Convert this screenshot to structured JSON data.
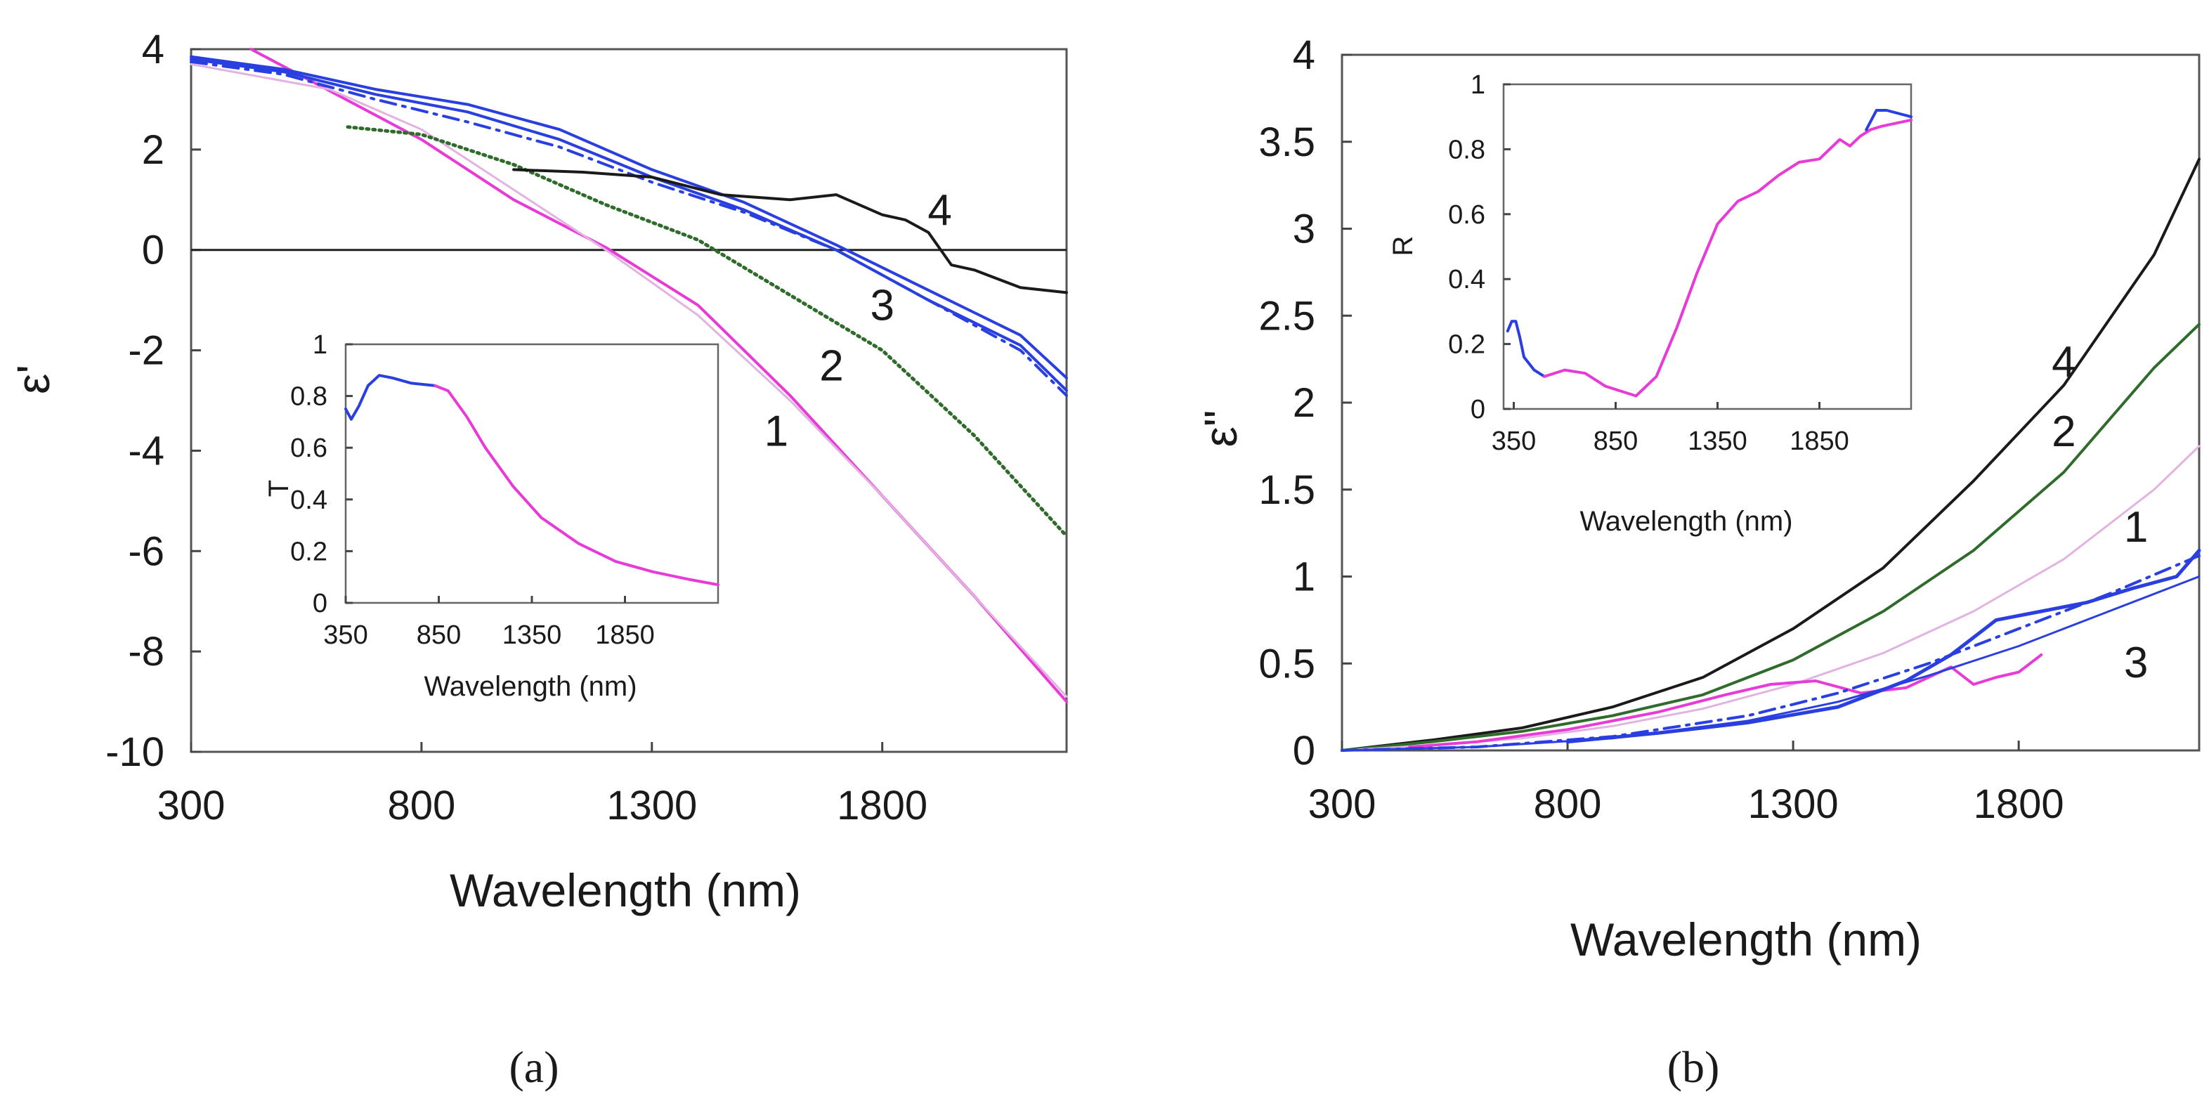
{
  "panel_labels": {
    "a": "(a)",
    "b": "(b)"
  },
  "colors": {
    "pink": "#e83ad6",
    "light_pink": "#e2b3e0",
    "green": "#2f6b2b",
    "blue": "#2a3fe0",
    "black": "#1a1a1a"
  },
  "chart_data": [
    {
      "id": "panel-a",
      "type": "line",
      "title": "",
      "xlabel": "Wavelength (nm)",
      "ylabel": "ε'",
      "xlim": [
        300,
        2200
      ],
      "ylim": [
        -10,
        4
      ],
      "xticks": [
        300,
        800,
        1300,
        1800
      ],
      "yticks": [
        4,
        2,
        0,
        -2,
        -4,
        -6,
        -8,
        -10
      ],
      "xtick_labels": [
        "300",
        "800",
        "1300",
        "1800"
      ],
      "ytick_labels": [
        "4",
        "2",
        "0",
        "-2",
        "-4",
        "-6",
        "-8",
        "-10"
      ],
      "reference_line_y": 0,
      "annotations": [
        {
          "text": "1",
          "x": 1570,
          "y": -3.9
        },
        {
          "text": "2",
          "x": 1690,
          "y": -2.6
        },
        {
          "text": "3",
          "x": 1800,
          "y": -1.4
        },
        {
          "text": "4",
          "x": 1925,
          "y": 0.5
        }
      ],
      "series": [
        {
          "name": "1",
          "color": "pink",
          "style": "solid",
          "width": 4,
          "x": [
            430,
            800,
            1000,
            1200,
            1400,
            1600,
            1800,
            2000,
            2200
          ],
          "y": [
            4.0,
            2.2,
            1.0,
            0.05,
            -1.1,
            -2.9,
            -4.9,
            -6.9,
            -9.0
          ]
        },
        {
          "name": "1 fit",
          "color": "light_pink",
          "style": "solid",
          "width": 3,
          "x": [
            300,
            600,
            800,
            1000,
            1200,
            1400,
            1600,
            1800,
            2000,
            2200
          ],
          "y": [
            3.7,
            3.2,
            2.4,
            1.2,
            0.0,
            -1.3,
            -3.0,
            -4.9,
            -6.9,
            -8.9
          ]
        },
        {
          "name": "2",
          "color": "green",
          "style": "dotted",
          "width": 5,
          "x": [
            640,
            800,
            1000,
            1200,
            1400,
            1600,
            1800,
            2000,
            2200
          ],
          "y": [
            2.45,
            2.3,
            1.7,
            0.9,
            0.2,
            -0.9,
            -2.0,
            -3.7,
            -5.7
          ]
        },
        {
          "name": "3 dashdot",
          "color": "blue",
          "style": "dashdot",
          "width": 4,
          "x": [
            300,
            500,
            700,
            900,
            1100,
            1300,
            1500,
            1700,
            1900,
            2100,
            2200
          ],
          "y": [
            3.75,
            3.5,
            3.0,
            2.55,
            2.05,
            1.35,
            0.75,
            0.0,
            -1.0,
            -2.0,
            -2.9
          ]
        },
        {
          "name": "3 solid",
          "color": "blue",
          "style": "solid",
          "width": 4,
          "x": [
            300,
            500,
            700,
            900,
            1100,
            1300,
            1500,
            1700,
            1900,
            2100,
            2200
          ],
          "y": [
            3.8,
            3.55,
            3.1,
            2.75,
            2.2,
            1.45,
            0.8,
            0.0,
            -1.0,
            -1.9,
            -2.8
          ]
        },
        {
          "name": "3 solid b",
          "color": "blue",
          "style": "solid",
          "width": 4,
          "x": [
            300,
            500,
            700,
            900,
            1100,
            1300,
            1500,
            1700,
            1900,
            2100,
            2200
          ],
          "y": [
            3.85,
            3.6,
            3.2,
            2.9,
            2.4,
            1.6,
            0.95,
            0.1,
            -0.8,
            -1.7,
            -2.55
          ]
        },
        {
          "name": "4",
          "color": "black",
          "style": "solid",
          "width": 4,
          "x": [
            1000,
            1150,
            1300,
            1450,
            1600,
            1700,
            1800,
            1850,
            1900,
            1950,
            2000,
            2100,
            2200
          ],
          "y": [
            1.6,
            1.55,
            1.45,
            1.1,
            1.0,
            1.1,
            0.7,
            0.6,
            0.35,
            -0.3,
            -0.4,
            -0.75,
            -0.85
          ]
        }
      ],
      "inset": {
        "xlabel": "Wavelength (nm)",
        "ylabel": "T",
        "xlim": [
          350,
          2350
        ],
        "ylim": [
          0,
          1
        ],
        "xticks": [
          350,
          850,
          1350,
          1850
        ],
        "yticks": [
          0,
          0.2,
          0.4,
          0.6,
          0.8,
          1
        ],
        "xtick_labels": [
          "350",
          "850",
          "1350",
          "1850"
        ],
        "ytick_labels": [
          "0",
          "0.2",
          "0.4",
          "0.6",
          "0.8",
          "1"
        ],
        "series": [
          {
            "name": "T blue",
            "color": "blue",
            "style": "solid",
            "width": 4,
            "x": [
              350,
              380,
              420,
              470,
              530,
              600,
              700,
              830
            ],
            "y": [
              0.75,
              0.71,
              0.76,
              0.84,
              0.88,
              0.87,
              0.85,
              0.84
            ]
          },
          {
            "name": "T pink",
            "color": "pink",
            "style": "solid",
            "width": 4,
            "x": [
              830,
              900,
              1000,
              1100,
              1250,
              1400,
              1600,
              1800,
              2000,
              2200,
              2350
            ],
            "y": [
              0.84,
              0.82,
              0.72,
              0.6,
              0.45,
              0.33,
              0.23,
              0.16,
              0.12,
              0.09,
              0.07
            ]
          }
        ]
      }
    },
    {
      "id": "panel-b",
      "type": "line",
      "title": "",
      "xlabel": "Wavelength (nm)",
      "ylabel": "ε\"",
      "xlim": [
        300,
        2200
      ],
      "ylim": [
        0,
        4
      ],
      "xticks": [
        300,
        800,
        1300,
        1800
      ],
      "yticks": [
        0,
        0.5,
        1,
        1.5,
        2,
        2.5,
        3,
        3.5,
        4
      ],
      "xtick_labels": [
        "300",
        "800",
        "1300",
        "1800"
      ],
      "ytick_labels": [
        "0",
        "0.5",
        "1",
        "1.5",
        "2",
        "2.5",
        "3",
        "3.5",
        "4"
      ],
      "annotations": [
        {
          "text": "4",
          "x": 1900,
          "y": 2.15
        },
        {
          "text": "2",
          "x": 1900,
          "y": 1.75
        },
        {
          "text": "1",
          "x": 2060,
          "y": 1.2
        },
        {
          "text": "3",
          "x": 2060,
          "y": 0.42
        }
      ],
      "series": [
        {
          "name": "4",
          "color": "black",
          "style": "solid",
          "width": 4,
          "x": [
            300,
            500,
            700,
            900,
            1100,
            1300,
            1500,
            1700,
            1900,
            2100,
            2200
          ],
          "y": [
            0.0,
            0.06,
            0.13,
            0.25,
            0.42,
            0.7,
            1.05,
            1.55,
            2.1,
            2.85,
            3.4
          ]
        },
        {
          "name": "2",
          "color": "green",
          "style": "solid",
          "width": 4,
          "x": [
            300,
            500,
            700,
            900,
            1100,
            1300,
            1500,
            1700,
            1900,
            2100,
            2200
          ],
          "y": [
            0.0,
            0.05,
            0.11,
            0.2,
            0.32,
            0.52,
            0.8,
            1.15,
            1.6,
            2.2,
            2.45
          ]
        },
        {
          "name": "1 fit",
          "color": "light_pink",
          "style": "solid",
          "width": 3,
          "x": [
            300,
            500,
            700,
            900,
            1100,
            1300,
            1500,
            1700,
            1900,
            2100,
            2200
          ],
          "y": [
            0.0,
            0.03,
            0.07,
            0.14,
            0.24,
            0.38,
            0.56,
            0.8,
            1.1,
            1.5,
            1.75
          ]
        },
        {
          "name": "1",
          "color": "pink",
          "style": "solid",
          "width": 4,
          "x": [
            450,
            600,
            800,
            1000,
            1150,
            1250,
            1350,
            1450,
            1550,
            1650,
            1700,
            1750,
            1800,
            1850
          ],
          "y": [
            0.02,
            0.05,
            0.12,
            0.22,
            0.32,
            0.38,
            0.4,
            0.33,
            0.36,
            0.48,
            0.38,
            0.42,
            0.45,
            0.55
          ]
        },
        {
          "name": "3 measured",
          "color": "blue",
          "style": "solid",
          "width": 5,
          "x": [
            800,
            1000,
            1200,
            1400,
            1550,
            1650,
            1750,
            1850,
            1950,
            2050,
            2150,
            2200
          ],
          "y": [
            0.05,
            0.1,
            0.16,
            0.25,
            0.4,
            0.55,
            0.75,
            0.8,
            0.85,
            0.93,
            1.0,
            1.15
          ]
        },
        {
          "name": "3 dashdot",
          "color": "blue",
          "style": "dashdot",
          "width": 4,
          "x": [
            300,
            600,
            900,
            1200,
            1400,
            1600,
            1800,
            2000,
            2200
          ],
          "y": [
            0.0,
            0.02,
            0.08,
            0.2,
            0.33,
            0.5,
            0.7,
            0.9,
            1.12
          ]
        },
        {
          "name": "3 fit",
          "color": "blue",
          "style": "solid",
          "width": 3,
          "x": [
            300,
            600,
            900,
            1200,
            1400,
            1600,
            1800,
            2000,
            2200
          ],
          "y": [
            0.0,
            0.02,
            0.07,
            0.17,
            0.28,
            0.43,
            0.6,
            0.8,
            1.0
          ]
        }
      ],
      "inset": {
        "xlabel": "Wavelength (nm)",
        "ylabel": "R",
        "xlim": [
          300,
          2300
        ],
        "ylim": [
          0,
          1
        ],
        "xticks": [
          350,
          850,
          1350,
          1850
        ],
        "yticks": [
          0,
          0.2,
          0.4,
          0.6,
          0.8,
          1
        ],
        "xtick_labels": [
          "350",
          "850",
          "1350",
          "1850"
        ],
        "ytick_labels": [
          "0",
          "0.2",
          "0.4",
          "0.6",
          "0.8",
          "1"
        ],
        "series": [
          {
            "name": "R blue",
            "color": "blue",
            "style": "solid",
            "width": 4,
            "x": [
              320,
              340,
              360,
              380,
              400,
              450,
              500
            ],
            "y": [
              0.24,
              0.27,
              0.27,
              0.22,
              0.16,
              0.12,
              0.1
            ]
          },
          {
            "name": "R pink",
            "color": "pink",
            "style": "solid",
            "width": 4,
            "x": [
              500,
              600,
              700,
              800,
              900,
              950,
              1050,
              1150,
              1250,
              1350,
              1450,
              1550,
              1650,
              1750,
              1850,
              1950,
              2000,
              2050,
              2100,
              2150,
              2300
            ],
            "y": [
              0.1,
              0.12,
              0.11,
              0.07,
              0.05,
              0.04,
              0.1,
              0.25,
              0.42,
              0.57,
              0.64,
              0.67,
              0.72,
              0.76,
              0.77,
              0.83,
              0.81,
              0.84,
              0.86,
              0.87,
              0.89
            ]
          },
          {
            "name": "R blue tail",
            "color": "blue",
            "style": "solid",
            "width": 4,
            "x": [
              2080,
              2130,
              2180,
              2300
            ],
            "y": [
              0.86,
              0.92,
              0.92,
              0.9
            ]
          }
        ]
      }
    }
  ]
}
